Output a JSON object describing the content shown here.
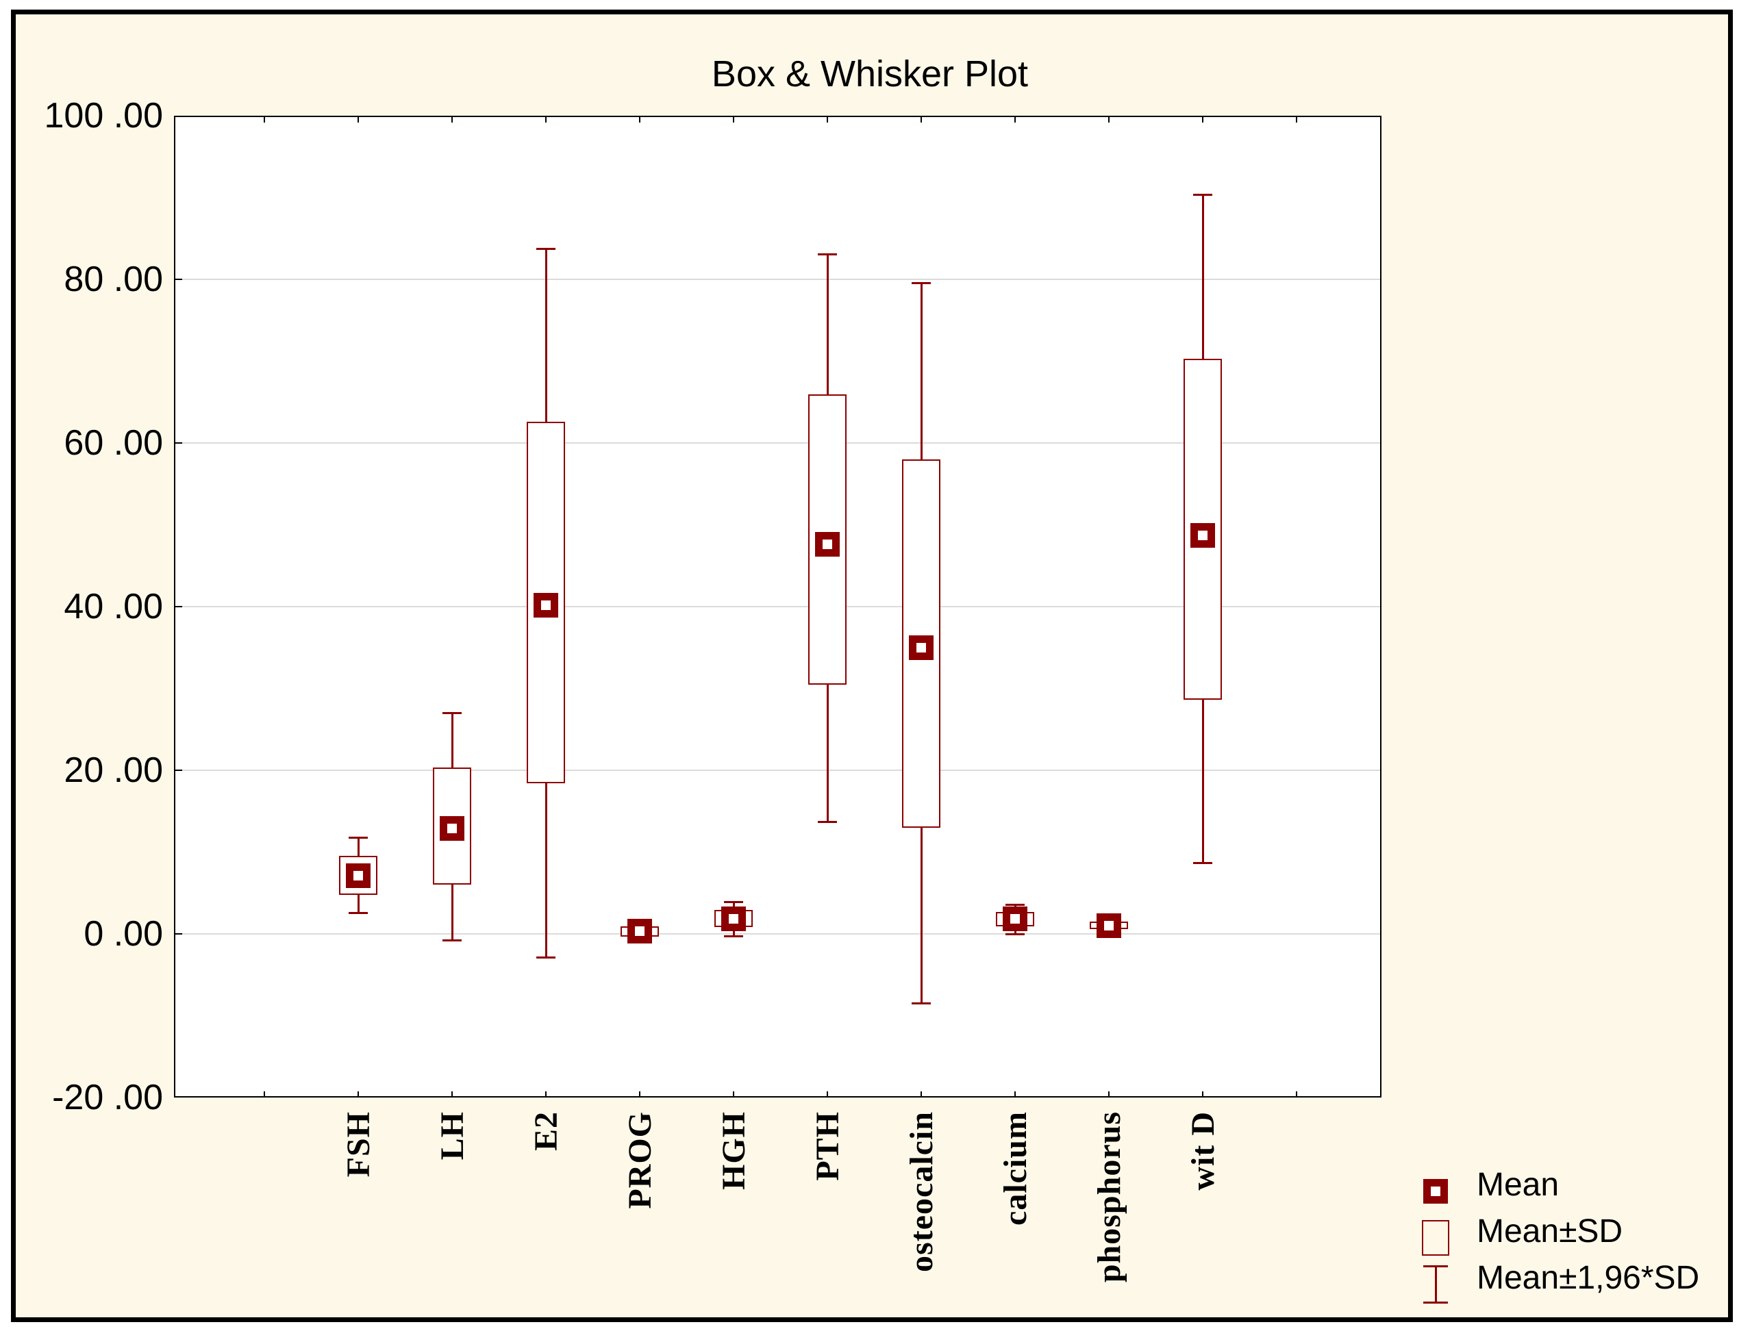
{
  "title": "Box & Whisker Plot",
  "colors": {
    "maroon": "#8B0000",
    "background": "#FDF8E8",
    "plot_background": "#FFFFFF",
    "grid": "#DBDBDB",
    "frame": "#000000"
  },
  "legend": {
    "position": "bottom-right",
    "items": [
      {
        "symbol": "mean-square-marker",
        "label": "Mean"
      },
      {
        "symbol": "box-outline",
        "label": "Mean±SD"
      },
      {
        "symbol": "whisker",
        "label": "Mean±1,96*SD"
      }
    ]
  },
  "chart_data": {
    "type": "box",
    "title": "Box & Whisker Plot",
    "xlabel": "",
    "ylabel": "",
    "ylim": [
      -20,
      100
    ],
    "y_tick_values": [
      100,
      80,
      60,
      40,
      20,
      0,
      -20
    ],
    "y_tick_labels": [
      "100 .00",
      "80 .00",
      "60 .00",
      "40 .00",
      "20 .00",
      "0 .00",
      "-20 .00"
    ],
    "grid": "horizontal",
    "legend_position": "bottom-right",
    "box_definition": {
      "center": "Mean",
      "box": "Mean±SD",
      "whisker": "Mean±1,96*SD"
    },
    "categories": [
      "FSH",
      "LH",
      "E2",
      "PROG",
      "HGH",
      "PTH",
      "osteocalcin",
      "calcium",
      "phosphorus",
      "wit D"
    ],
    "series": [
      {
        "name": "FSH",
        "mean": 7.1,
        "box_low": 4.8,
        "box_high": 9.5,
        "whisker_low": 2.5,
        "whisker_high": 11.8
      },
      {
        "name": "LH",
        "mean": 12.9,
        "box_low": 6.0,
        "box_high": 20.3,
        "whisker_low": -0.8,
        "whisker_high": 27.0
      },
      {
        "name": "E2",
        "mean": 40.2,
        "box_low": 18.4,
        "box_high": 62.6,
        "whisker_low": -2.9,
        "whisker_high": 83.8
      },
      {
        "name": "PROG",
        "mean": 0.3,
        "box_low": -0.3,
        "box_high": 0.9,
        "whisker_low": -0.8,
        "whisker_high": 1.4
      },
      {
        "name": "HGH",
        "mean": 1.8,
        "box_low": 0.8,
        "box_high": 2.9,
        "whisker_low": -0.3,
        "whisker_high": 3.9
      },
      {
        "name": "PTH",
        "mean": 47.6,
        "box_low": 30.5,
        "box_high": 65.9,
        "whisker_low": 13.6,
        "whisker_high": 83.1
      },
      {
        "name": "osteocalcin",
        "mean": 35.0,
        "box_low": 13.0,
        "box_high": 58.0,
        "whisker_low": -8.5,
        "whisker_high": 79.6
      },
      {
        "name": "calcium",
        "mean": 1.8,
        "box_low": 0.9,
        "box_high": 2.7,
        "whisker_low": -0.1,
        "whisker_high": 3.6
      },
      {
        "name": "phosphorus",
        "mean": 1.0,
        "box_low": 0.6,
        "box_high": 1.5,
        "whisker_low": 0.1,
        "whisker_high": 1.9
      },
      {
        "name": "wit D",
        "mean": 48.7,
        "box_low": 28.6,
        "box_high": 70.3,
        "whisker_low": 8.6,
        "whisker_high": 90.4
      }
    ]
  }
}
